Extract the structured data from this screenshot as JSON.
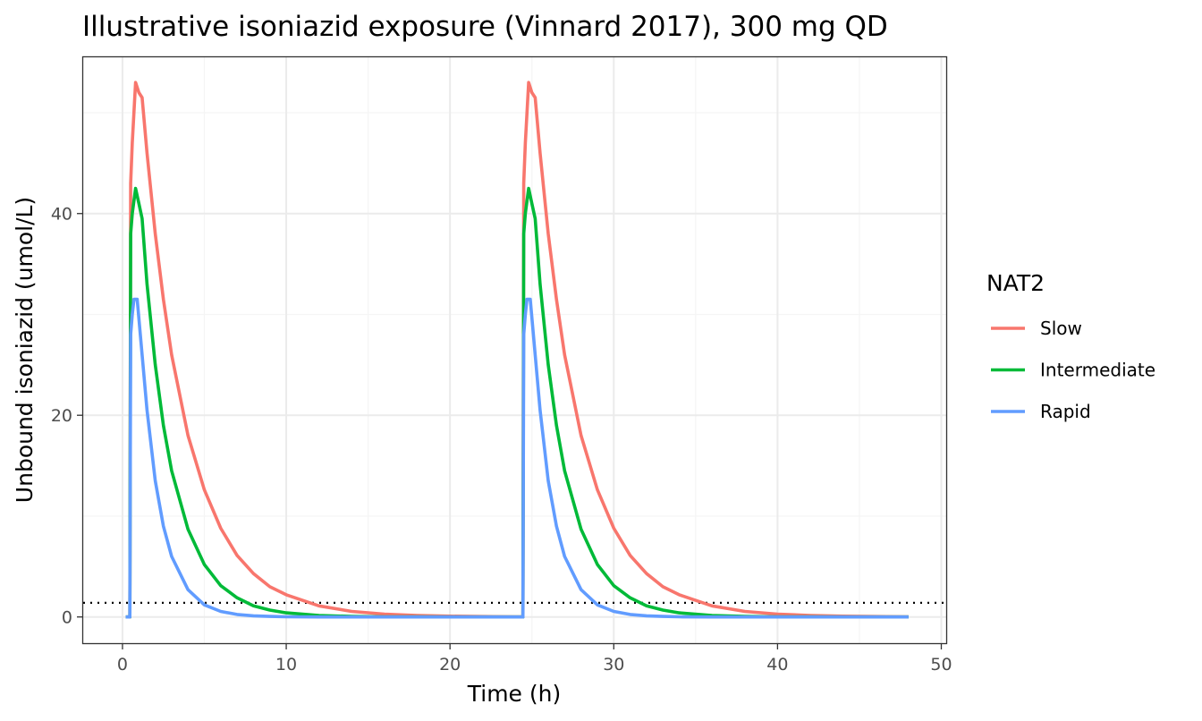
{
  "chart_data": {
    "type": "line",
    "title": "Illustrative isoniazid exposure (Vinnard 2017), 300 mg QD",
    "xlabel": "Time (h)",
    "ylabel": "Unbound isoniazid (umol/L)",
    "xlim": [
      -2.4,
      50.3
    ],
    "ylim": [
      -2.6,
      55.5
    ],
    "x_ticks": [
      0,
      10,
      20,
      30,
      40,
      50
    ],
    "y_ticks": [
      0,
      20,
      40
    ],
    "grid": true,
    "legend": {
      "title": "NAT2",
      "position": "right",
      "entries": [
        "Slow",
        "Intermediate",
        "Rapid"
      ]
    },
    "reference_line": {
      "y": 1.4,
      "style": "dotted"
    },
    "series": [
      {
        "name": "Slow",
        "color": "#F8766D",
        "x": [
          0.2,
          0.45,
          0.5,
          0.6,
          0.8,
          1.0,
          1.2,
          1.5,
          2,
          2.5,
          3,
          4,
          5,
          6,
          7,
          8,
          9,
          10,
          12,
          14,
          16,
          18,
          20,
          22,
          24,
          24.2,
          24.45,
          24.5,
          24.6,
          24.8,
          25.0,
          25.2,
          25.5,
          26,
          26.5,
          27,
          28,
          29,
          30,
          31,
          32,
          33,
          34,
          36,
          38,
          40,
          42,
          44,
          46,
          48
        ],
        "y": [
          0,
          0,
          43,
          47,
          53,
          52,
          51.5,
          46,
          38,
          31.5,
          26,
          18,
          12.6,
          8.8,
          6.1,
          4.3,
          3.0,
          2.2,
          1.1,
          0.55,
          0.28,
          0.15,
          0.08,
          0.04,
          0.02,
          0.02,
          0.02,
          43,
          47,
          53,
          52,
          51.5,
          46,
          38,
          31.5,
          26,
          18,
          12.6,
          8.8,
          6.1,
          4.3,
          3.0,
          2.2,
          1.1,
          0.55,
          0.28,
          0.15,
          0.08,
          0.04,
          0.02
        ]
      },
      {
        "name": "Intermediate",
        "color": "#00BA38",
        "x": [
          0.2,
          0.45,
          0.5,
          0.6,
          0.8,
          1.0,
          1.2,
          1.5,
          2,
          2.5,
          3,
          4,
          5,
          6,
          7,
          8,
          9,
          10,
          12,
          14,
          16,
          18,
          20,
          22,
          24,
          24.2,
          24.45,
          24.5,
          24.6,
          24.8,
          25.0,
          25.2,
          25.5,
          26,
          26.5,
          27,
          28,
          29,
          30,
          31,
          32,
          33,
          34,
          36,
          38,
          40,
          42,
          44,
          46,
          48
        ],
        "y": [
          0,
          0,
          38,
          40,
          42.5,
          41,
          39.5,
          33,
          25,
          19,
          14.5,
          8.7,
          5.2,
          3.1,
          1.9,
          1.1,
          0.68,
          0.41,
          0.15,
          0.05,
          0.02,
          0.01,
          0,
          0,
          0,
          0,
          0,
          38,
          40,
          42.5,
          41,
          39.5,
          33,
          25,
          19,
          14.5,
          8.7,
          5.2,
          3.1,
          1.9,
          1.1,
          0.68,
          0.41,
          0.15,
          0.05,
          0.02,
          0.01,
          0,
          0,
          0
        ]
      },
      {
        "name": "Rapid",
        "color": "#619CFF",
        "x": [
          0.2,
          0.45,
          0.5,
          0.6,
          0.7,
          0.9,
          1.2,
          1.5,
          2,
          2.5,
          3,
          4,
          5,
          6,
          7,
          8,
          9,
          10,
          12,
          14,
          16,
          18,
          20,
          22,
          24,
          24.2,
          24.45,
          24.5,
          24.6,
          24.7,
          24.9,
          25.2,
          25.5,
          26,
          26.5,
          27,
          28,
          29,
          30,
          31,
          32,
          33,
          34,
          36,
          38,
          40,
          42,
          44,
          46,
          48
        ],
        "y": [
          0,
          0,
          28,
          30,
          31.5,
          31.5,
          26,
          20.5,
          13.5,
          9,
          6,
          2.7,
          1.2,
          0.55,
          0.25,
          0.11,
          0.05,
          0.02,
          0,
          0,
          0,
          0,
          0,
          0,
          0,
          0,
          0,
          28,
          30,
          31.5,
          31.5,
          26,
          20.5,
          13.5,
          9,
          6,
          2.7,
          1.2,
          0.55,
          0.25,
          0.11,
          0.05,
          0.02,
          0,
          0,
          0,
          0,
          0,
          0,
          0
        ]
      }
    ]
  }
}
